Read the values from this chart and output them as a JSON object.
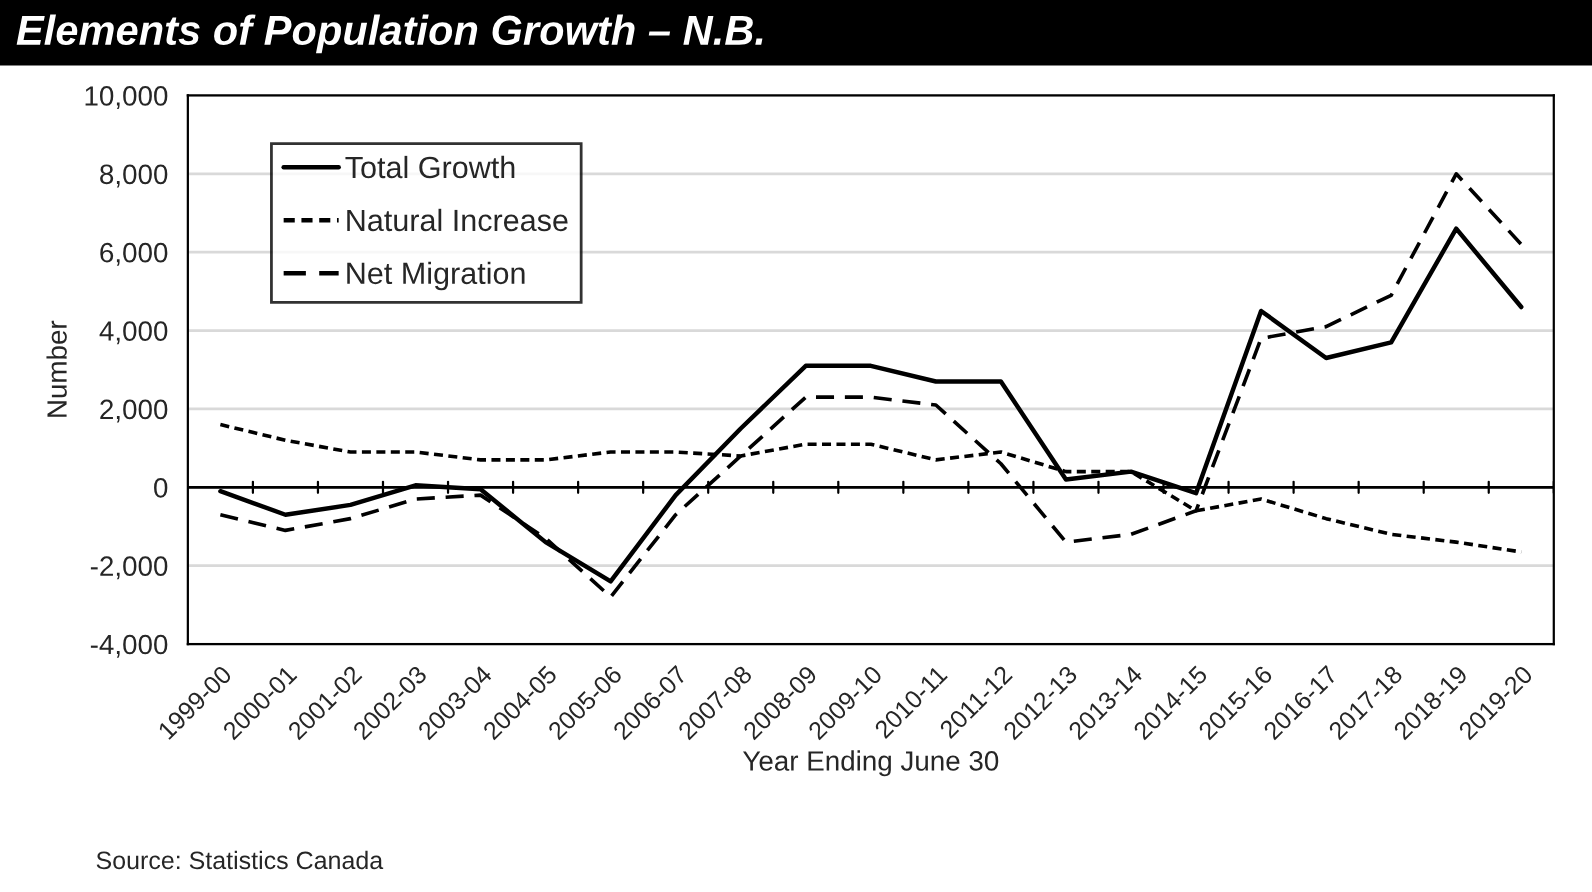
{
  "chart_data": {
    "type": "line",
    "title": "Elements of Population Growth – N.B.",
    "xlabel": "Year Ending June 30",
    "ylabel": "Number",
    "categories": [
      "1999-00",
      "2000-01",
      "2001-02",
      "2002-03",
      "2003-04",
      "2004-05",
      "2005-06",
      "2006-07",
      "2007-08",
      "2008-09",
      "2009-10",
      "2010-11",
      "2011-12",
      "2012-13",
      "2013-14",
      "2014-15",
      "2015-16",
      "2016-17",
      "2017-18",
      "2018-19",
      "2019-20"
    ],
    "series": [
      {
        "name": "Total Growth",
        "color": "#000000",
        "line_style": "solid",
        "values": [
          -100,
          -700,
          -450,
          50,
          -50,
          -1400,
          -2400,
          -200,
          1500,
          3100,
          3100,
          2700,
          2700,
          200,
          400,
          -150,
          4500,
          3300,
          3700,
          6600,
          4600
        ]
      },
      {
        "name": "Natural Increase",
        "color": "#000000",
        "line_style": "dotted",
        "values": [
          1600,
          1200,
          900,
          900,
          700,
          700,
          900,
          900,
          800,
          1100,
          1100,
          700,
          900,
          400,
          400,
          -600,
          -300,
          -800,
          -1200,
          -1400,
          -1650
        ]
      },
      {
        "name": "Net Migration",
        "color": "#000000",
        "line_style": "dashed",
        "values": [
          -700,
          -1100,
          -800,
          -300,
          -200,
          -1300,
          -2800,
          -700,
          800,
          2300,
          2300,
          2100,
          600,
          -1400,
          -1200,
          -600,
          3800,
          4100,
          4900,
          8000,
          6200
        ]
      }
    ],
    "ylim": [
      -4000,
      10000
    ],
    "yticks": [
      {
        "value": -4000,
        "label": "-4,000"
      },
      {
        "value": -2000,
        "label": "-2,000"
      },
      0,
      {
        "value": 2000,
        "label": "2,000"
      },
      {
        "value": 4000,
        "label": "4,000"
      },
      {
        "value": 6000,
        "label": "6,000"
      },
      {
        "value": 8000,
        "label": "8,000"
      },
      {
        "value": 10000,
        "label": "10,000"
      }
    ],
    "grid": "y",
    "legend": "top left",
    "annotations": [
      "Source: Statistics Canada"
    ]
  }
}
